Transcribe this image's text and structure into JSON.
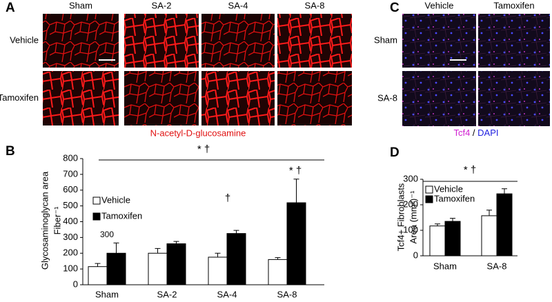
{
  "panel_labels": [
    "A",
    "B",
    "C",
    "D"
  ],
  "figure_a": {
    "columns": [
      "Sham",
      "SA-2",
      "SA-4",
      "SA-8"
    ],
    "rows": [
      "Vehicle",
      "Tamoxifen"
    ],
    "caption": "N-acetyl-D-glucosamine"
  },
  "figure_c": {
    "columns": [
      "Vehicle",
      "Tamoxifen"
    ],
    "rows": [
      "Sham",
      "SA-8"
    ],
    "caption_parts": [
      "Tcf4",
      "/",
      "DAPI"
    ]
  },
  "chart_data": [
    {
      "type": "bar",
      "y_label": [
        "Glycosaminoglycan area",
        "Fiber⁻¹"
      ],
      "categories": [
        "Sham",
        "SA-2",
        "SA-4",
        "SA-8"
      ],
      "series": [
        {
          "name": "Vehicle",
          "color": "#ffffff",
          "values": [
            115,
            200,
            175,
            160
          ],
          "errors": [
            20,
            30,
            25,
            12
          ]
        },
        {
          "name": "Tamoxifen",
          "color": "#000000",
          "values": [
            200,
            260,
            325,
            520
          ],
          "errors": [
            65,
            15,
            20,
            150
          ]
        }
      ],
      "ylim": [
        0,
        800
      ],
      "yticks": [
        0,
        100,
        200,
        300,
        400,
        500,
        600,
        700,
        800
      ],
      "annotations": [
        "300",
        "†",
        "* †",
        "* †"
      ]
    },
    {
      "type": "bar",
      "y_label": [
        "Tcf4+ Fibroblasts",
        "Area (mm²)⁻¹"
      ],
      "categories": [
        "Sham",
        "SA-8"
      ],
      "series": [
        {
          "name": "Vehicle",
          "color": "#ffffff",
          "values": [
            117,
            157
          ],
          "errors": [
            8,
            22
          ]
        },
        {
          "name": "Tamoxifen",
          "color": "#000000",
          "values": [
            135,
            243
          ],
          "errors": [
            12,
            20
          ]
        }
      ],
      "ylim": [
        0,
        300
      ],
      "yticks": [
        0,
        100,
        200,
        300
      ],
      "annotations": [
        "* †"
      ]
    }
  ]
}
